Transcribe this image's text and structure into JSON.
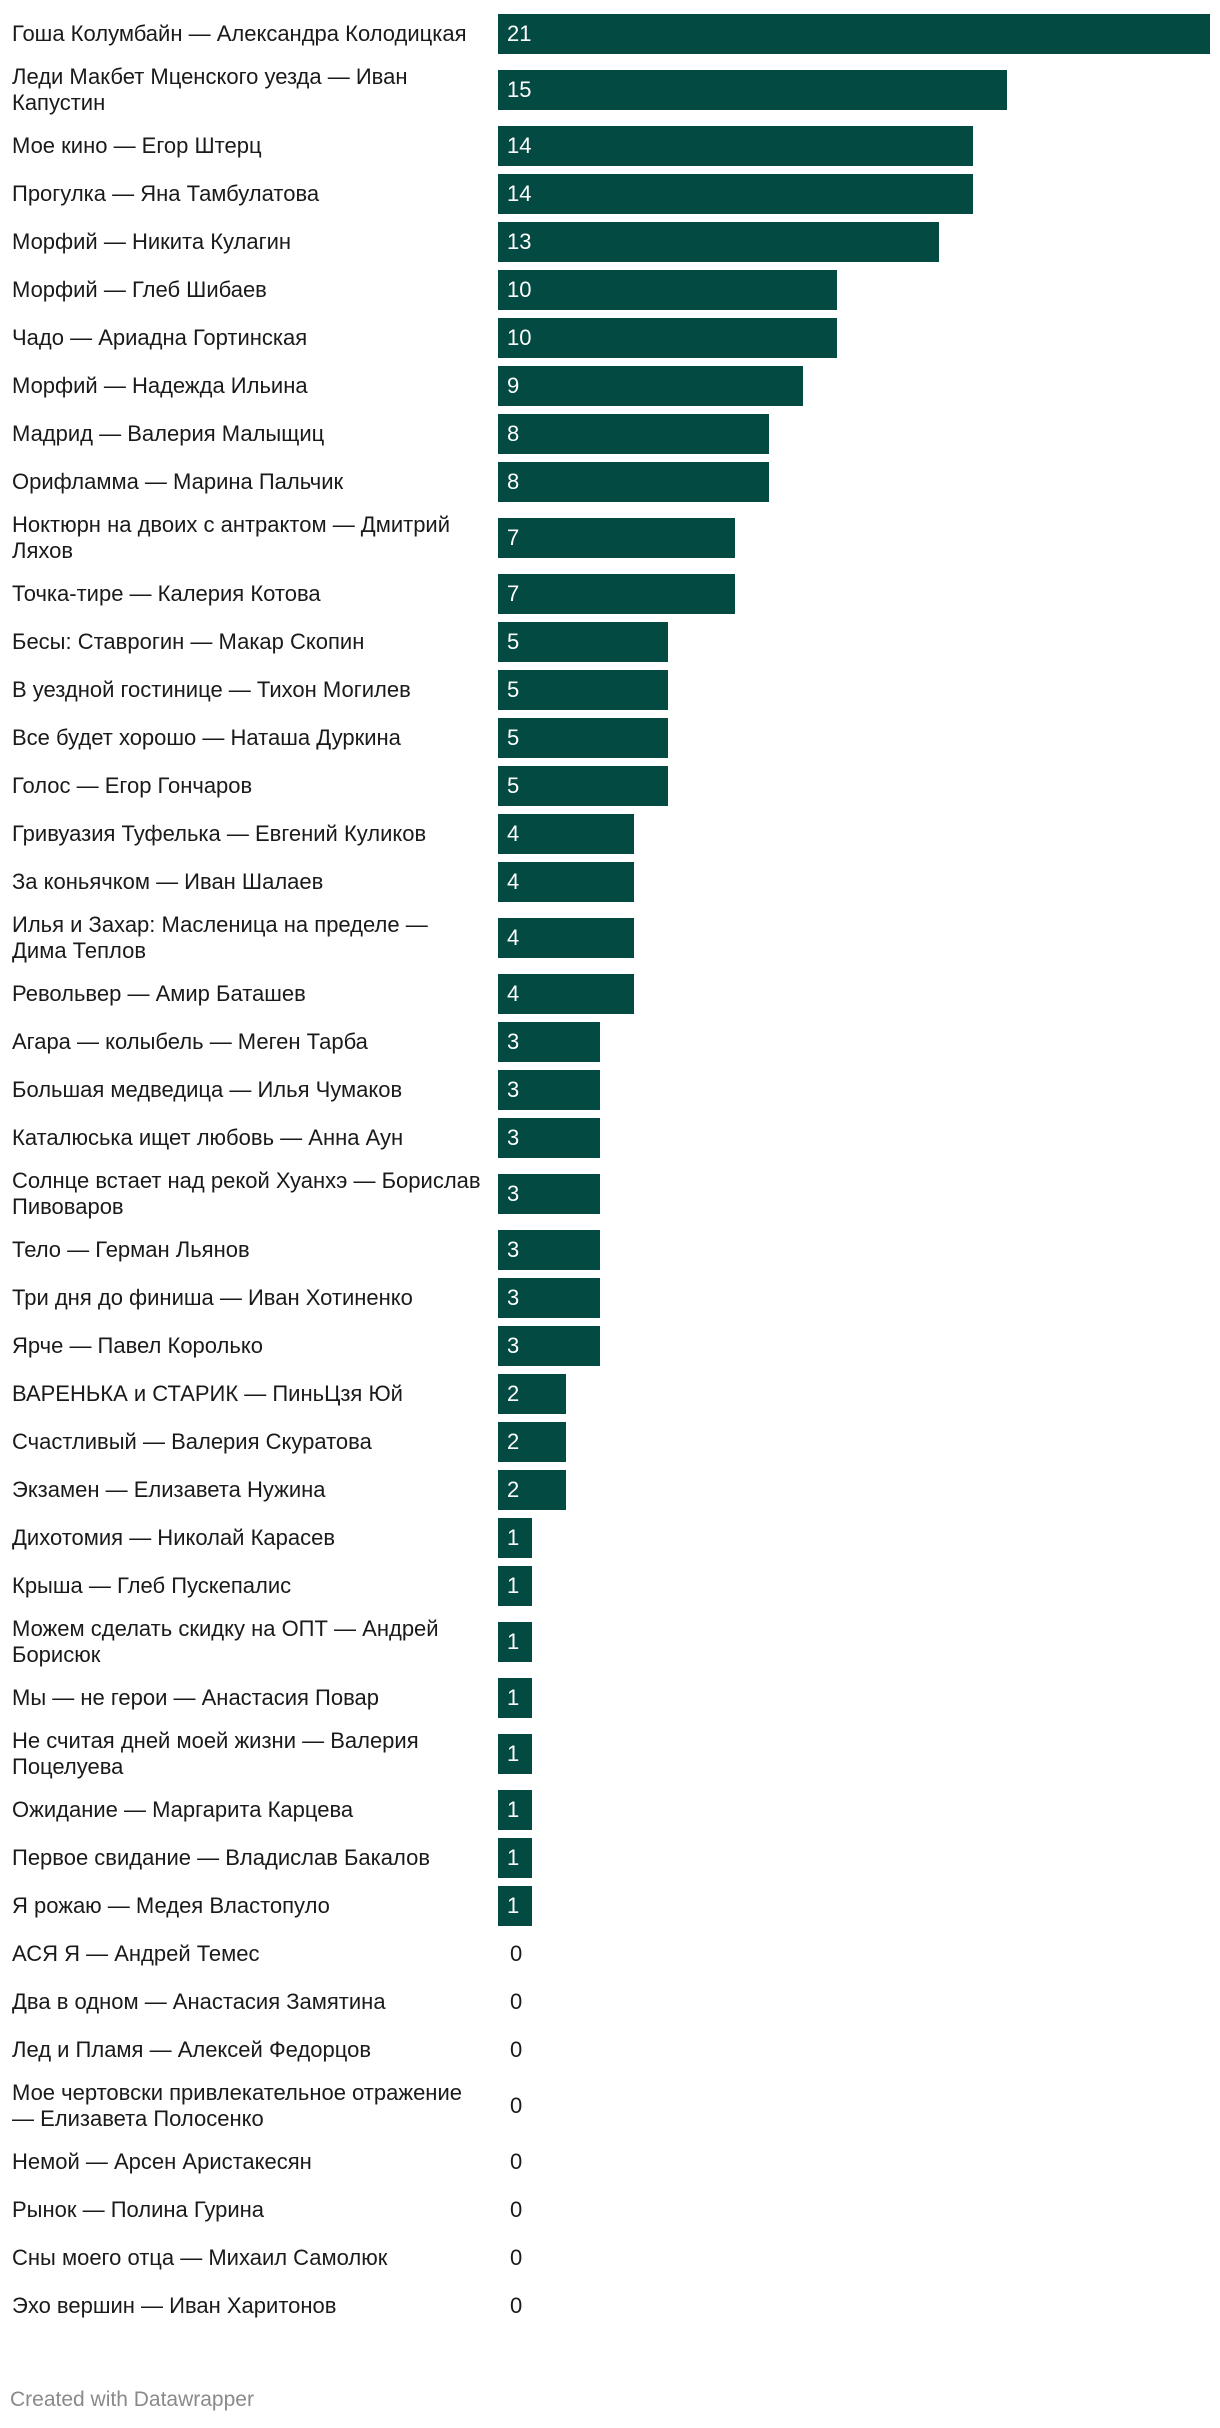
{
  "chart_data": {
    "type": "bar",
    "orientation": "horizontal",
    "title": "",
    "xlabel": "",
    "ylabel": "",
    "bar_color": "#034a42",
    "categories": [
      "Гоша Колумбайн — Александра Колодицкая",
      "Леди Макбет Мценского уезда — Иван Капустин",
      "Мое кино — Егор Штерц",
      "Прогулка — Яна Тамбулатова",
      "Морфий — Никита Кулагин",
      "Морфий — Глеб Шибаев",
      "Чадо — Ариадна Гортинская",
      "Морфий — Надежда Ильина",
      "Мадрид — Валерия Малыщиц",
      "Орифламма — Марина Пальчик",
      "Ноктюрн на двоих с антрактом — Дмитрий Ляхов",
      "Точка-тире — Калерия Котова",
      "Бесы: Ставрогин — Макар Скопин",
      "В уездной гостинице — Тихон Могилев",
      "Все будет хорошо — Наташа Дуркина",
      "Голос — Егор Гончаров",
      "Гривуазия Туфелька — Евгений Куликов",
      "За коньячком — Иван Шалаев",
      "Илья и Захар: Масленица на пределе — Дима Теплов",
      "Револьвер — Амир Баташев",
      "Агара — колыбель — Меген Тарба",
      "Большая медведица — Илья Чумаков",
      "Каталюська ищет любовь — Анна Аун",
      "Солнце встает над рекой Хуанхэ — Борислав Пивоваров",
      "Тело — Герман Льянов",
      "Три дня до финиша — Иван Хотиненко",
      "Ярче — Павел Королько",
      "ВАРЕНЬКА и СТАРИК — ПиньЦзя Юй",
      "Счастливый — Валерия Скуратова",
      "Экзамен — Елизавета Нужина",
      "Дихотомия — Николай Карасев",
      "Крыша — Глеб Пускепалис",
      "Можем сделать скидку на ОПТ — Андрей Борисюк",
      "Мы — не герои — Анастасия Повар",
      "Не считая дней моей жизни — Валерия Поцелуева",
      "Ожидание — Маргарита Карцева",
      "Первое свидание — Владислав Бакалов",
      "Я рожаю — Медея Властопуло",
      "АСЯ Я — Андрей Темес",
      "Два в одном — Анастасия Замятина",
      "Лед и Пламя — Алексей Федорцов",
      "Мое чертовски привлекательное отражение — Елизавета Полосенко",
      "Немой — Арсен Аристакесян",
      "Рынок — Полина Гурина",
      "Сны моего отца — Михаил Самолюк",
      "Эхо вершин — Иван Харитонов"
    ],
    "values": [
      21,
      15,
      14,
      14,
      13,
      10,
      10,
      9,
      8,
      8,
      7,
      7,
      5,
      5,
      5,
      5,
      4,
      4,
      4,
      4,
      3,
      3,
      3,
      3,
      3,
      3,
      3,
      2,
      2,
      2,
      1,
      1,
      1,
      1,
      1,
      1,
      1,
      1,
      0,
      0,
      0,
      0,
      0,
      0,
      0,
      0
    ],
    "xlim": [
      0,
      21
    ],
    "grid": false,
    "legend": "none"
  },
  "footer": {
    "credit": "Created with Datawrapper"
  }
}
